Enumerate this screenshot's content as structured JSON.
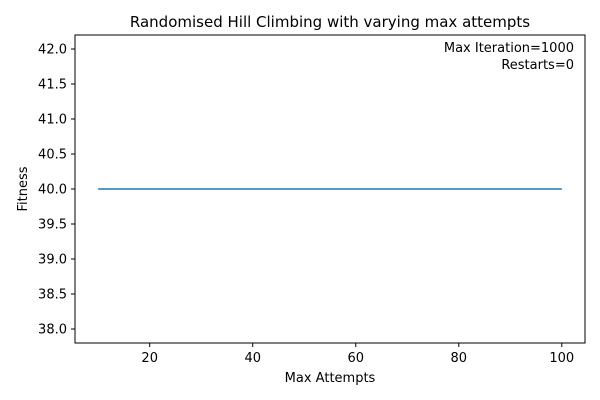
{
  "chart_data": {
    "type": "line",
    "title": "Randomised Hill Climbing with varying max attempts",
    "xlabel": "Max Attempts",
    "ylabel": "Fitness",
    "xlim": [
      5.5,
      104.5
    ],
    "ylim": [
      37.8,
      42.2
    ],
    "xticks": [
      20,
      40,
      60,
      80,
      100
    ],
    "yticks": [
      38.0,
      38.5,
      39.0,
      39.5,
      40.0,
      40.5,
      41.0,
      41.5,
      42.0
    ],
    "grid": false,
    "line_color": "#1f77b4",
    "series": [
      {
        "x": [
          10,
          100
        ],
        "y": [
          40.0,
          40.0
        ]
      }
    ],
    "annotations": [
      "Max Iteration=1000",
      "Restarts=0"
    ]
  }
}
